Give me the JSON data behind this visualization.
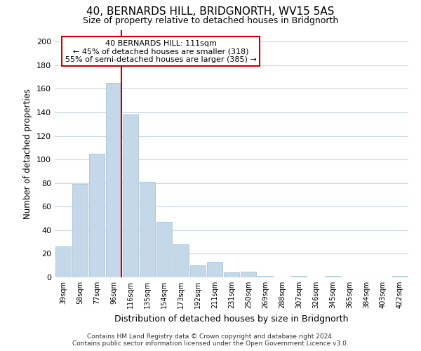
{
  "title": "40, BERNARDS HILL, BRIDGNORTH, WV15 5AS",
  "subtitle": "Size of property relative to detached houses in Bridgnorth",
  "xlabel": "Distribution of detached houses by size in Bridgnorth",
  "ylabel": "Number of detached properties",
  "bar_labels": [
    "39sqm",
    "58sqm",
    "77sqm",
    "96sqm",
    "116sqm",
    "135sqm",
    "154sqm",
    "173sqm",
    "192sqm",
    "211sqm",
    "231sqm",
    "250sqm",
    "269sqm",
    "288sqm",
    "307sqm",
    "326sqm",
    "345sqm",
    "365sqm",
    "384sqm",
    "403sqm",
    "422sqm"
  ],
  "bar_values": [
    26,
    79,
    105,
    165,
    138,
    81,
    47,
    28,
    10,
    13,
    4,
    5,
    1,
    0,
    1,
    0,
    1,
    0,
    0,
    0,
    1
  ],
  "bar_color": "#c5d8ea",
  "bar_edge_color": "#a8c4d8",
  "vline_color": "#cc0000",
  "ylim": [
    0,
    210
  ],
  "yticks": [
    0,
    20,
    40,
    60,
    80,
    100,
    120,
    140,
    160,
    180,
    200
  ],
  "annotation_title": "40 BERNARDS HILL: 111sqm",
  "annotation_line1": "← 45% of detached houses are smaller (318)",
  "annotation_line2": "55% of semi-detached houses are larger (385) →",
  "annotation_box_color": "#ffffff",
  "annotation_box_edge": "#cc0000",
  "footer_line1": "Contains HM Land Registry data © Crown copyright and database right 2024.",
  "footer_line2": "Contains public sector information licensed under the Open Government Licence v3.0.",
  "bg_color": "#ffffff",
  "grid_color": "#ccd9e5"
}
